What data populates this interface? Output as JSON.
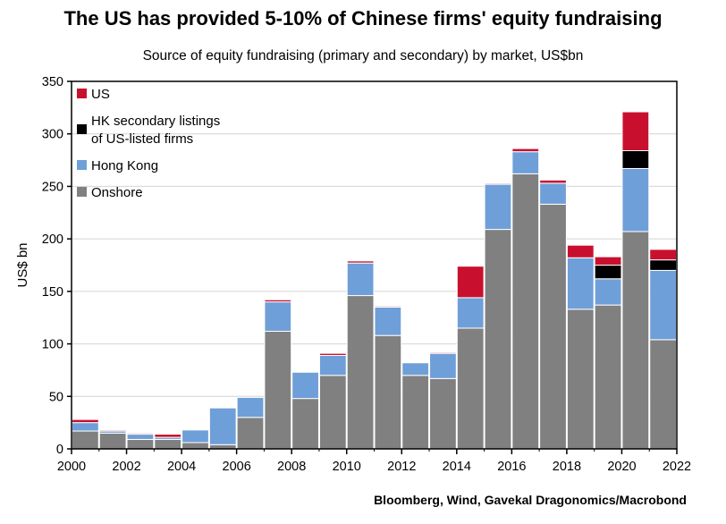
{
  "chart_data": {
    "type": "bar",
    "stacked": true,
    "title": "The US has provided 5-10% of Chinese firms' equity fundraising",
    "subtitle": "Source of equity fundraising (primary and secondary) by market, US$bn",
    "xlabel": "",
    "ylabel": "US$ bn",
    "source": "Bloomberg, Wind, Gavekal Dragonomics/Macrobond",
    "ylim": [
      0,
      350
    ],
    "yticks": [
      0,
      50,
      100,
      150,
      200,
      250,
      300,
      350
    ],
    "xlim": [
      2000,
      2022
    ],
    "xticks": [
      2000,
      2002,
      2004,
      2006,
      2008,
      2010,
      2012,
      2014,
      2016,
      2018,
      2020,
      2022
    ],
    "categories": [
      "2000",
      "2001",
      "2002",
      "2003",
      "2004",
      "2005",
      "2006",
      "2007",
      "2008",
      "2009",
      "2010",
      "2011",
      "2012",
      "2013",
      "2014",
      "2015",
      "2016",
      "2017",
      "2018",
      "2019",
      "2020",
      "2021"
    ],
    "series": [
      {
        "name": "Onshore",
        "color": "#808080",
        "values": [
          17,
          15,
          9,
          9,
          6,
          4,
          30,
          112,
          48,
          70,
          146,
          108,
          70,
          67,
          115,
          209,
          262,
          233,
          133,
          137,
          207,
          104
        ]
      },
      {
        "name": "Hong Kong",
        "color": "#6f9fd8",
        "values": [
          8,
          2,
          5,
          2,
          12,
          35,
          19,
          28,
          25,
          19,
          31,
          27,
          12,
          24,
          29,
          43,
          21,
          20,
          49,
          25,
          60,
          66
        ]
      },
      {
        "name": "HK secondary listings\nof US-listed firms",
        "color": "#000000",
        "values": [
          0,
          0,
          0,
          0,
          0,
          0,
          0,
          0,
          0,
          0,
          0,
          0,
          0,
          0,
          0,
          0,
          0,
          0,
          0,
          13,
          17,
          10
        ]
      },
      {
        "name": "US",
        "color": "#c8102e",
        "values": [
          3,
          1,
          1,
          3,
          0,
          0,
          0,
          2,
          0,
          2,
          2,
          1,
          0,
          1,
          30,
          1,
          3,
          3,
          12,
          8,
          37,
          10
        ]
      }
    ],
    "legend": [
      {
        "name": "US",
        "color": "#c8102e"
      },
      {
        "name": "HK secondary listings\nof US-listed firms",
        "color": "#000000"
      },
      {
        "name": "Hong Kong",
        "color": "#6f9fd8"
      },
      {
        "name": "Onshore",
        "color": "#808080"
      }
    ],
    "legend_position": "top-left",
    "grid": true
  }
}
